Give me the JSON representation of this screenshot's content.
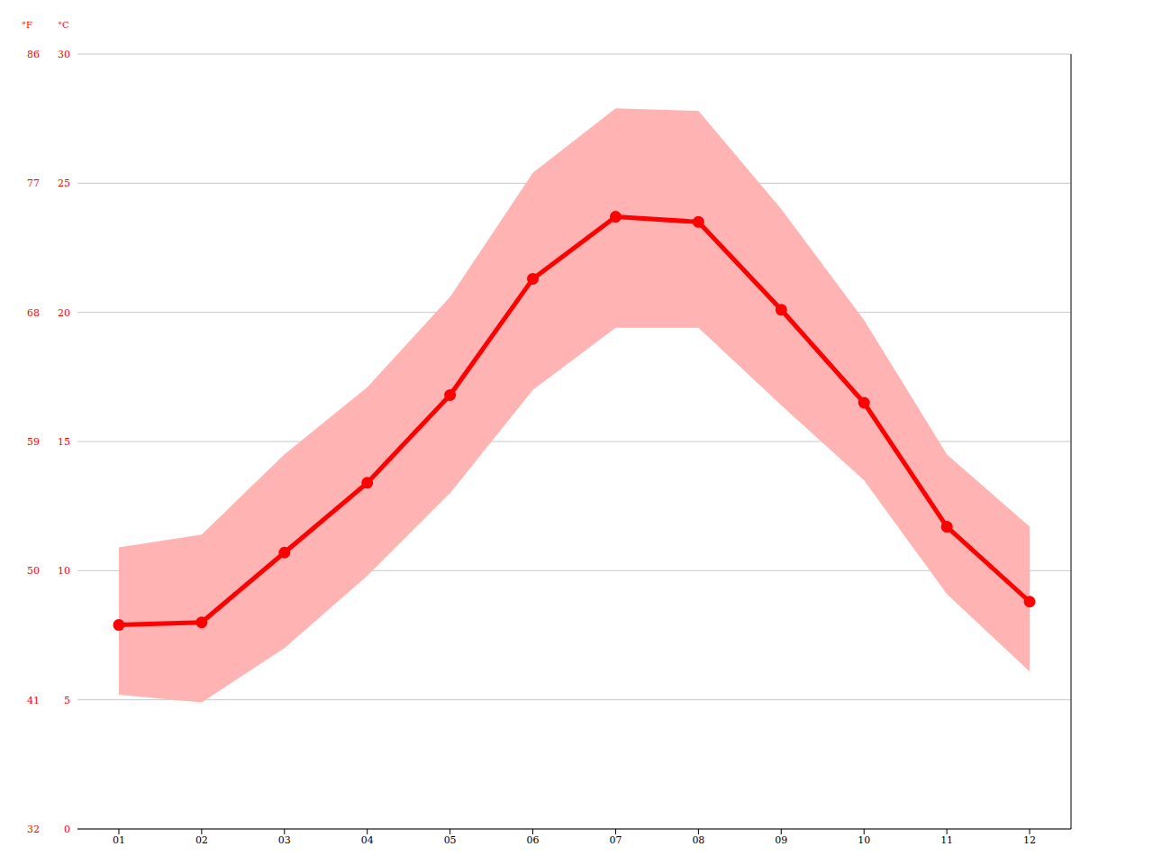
{
  "chart_data": {
    "type": "line",
    "y_label": "°C",
    "y2_label": "°F",
    "categories": [
      "01",
      "02",
      "03",
      "04",
      "05",
      "06",
      "07",
      "08",
      "09",
      "10",
      "11",
      "12"
    ],
    "values": [
      7.9,
      8.0,
      10.7,
      13.4,
      16.8,
      21.3,
      23.7,
      23.5,
      20.1,
      16.5,
      11.7,
      8.8
    ],
    "color": "#ff0000",
    "marker": "circle",
    "band_min": [
      5.2,
      4.9,
      7.0,
      9.8,
      13.0,
      17.0,
      19.4,
      19.4,
      16.4,
      13.5,
      9.1,
      6.1
    ],
    "band_max": [
      10.9,
      11.4,
      14.5,
      17.1,
      20.6,
      25.4,
      27.9,
      27.8,
      24.0,
      19.7,
      14.5,
      11.7
    ],
    "band_color": "#ffb3b3",
    "ylim": [
      0,
      30
    ],
    "yticks": [
      0,
      5,
      10,
      15,
      20,
      25,
      30
    ],
    "y2lim": [
      32,
      86
    ],
    "y2ticks": [
      32,
      41,
      50,
      59,
      68,
      77,
      86
    ],
    "grid": true
  }
}
